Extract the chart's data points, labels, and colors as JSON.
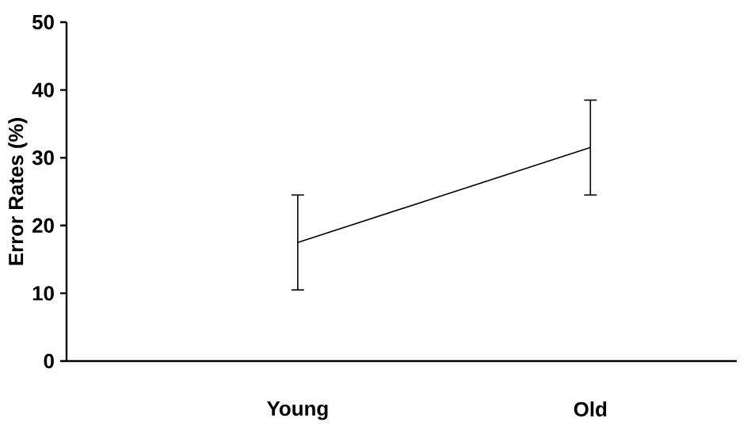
{
  "chart_data": {
    "type": "line",
    "ylabel": "Error Rates (%)",
    "categories": [
      "Young",
      "Old"
    ],
    "series": [
      {
        "color": "#000000",
        "values": [
          17.5,
          31.5
        ],
        "errors": [
          7,
          7
        ]
      }
    ],
    "ylim": [
      0,
      50
    ],
    "yticks": [
      0,
      10,
      20,
      30,
      40,
      50
    ],
    "grid": false,
    "marker": "none",
    "line_style": "solid"
  }
}
